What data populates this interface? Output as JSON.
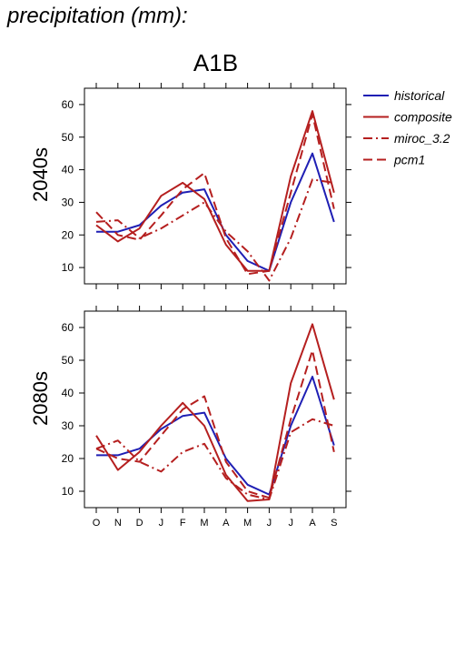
{
  "title": "precipitation (mm):",
  "subtitle": "A1B",
  "colors": {
    "historical": "#1f1fb4",
    "model": "#b51f1f",
    "axis": "#000000",
    "background": "#ffffff"
  },
  "legend": [
    {
      "label": "historical",
      "color": "#1f1fb4",
      "dash": "solid"
    },
    {
      "label": "composite",
      "color": "#b51f1f",
      "dash": "solid"
    },
    {
      "label": "miroc_3.2",
      "color": "#b51f1f",
      "dash": "dashdot"
    },
    {
      "label": "pcm1",
      "color": "#b51f1f",
      "dash": "dashed"
    }
  ],
  "chart_data": [
    {
      "type": "line",
      "panel_label": "2040s",
      "categories": [
        "O",
        "N",
        "D",
        "J",
        "F",
        "M",
        "A",
        "M",
        "J",
        "J",
        "A",
        "S"
      ],
      "ylim": [
        5,
        65
      ],
      "yticks": [
        10,
        20,
        30,
        40,
        50,
        60
      ],
      "series": [
        {
          "name": "historical",
          "values": [
            21,
            21,
            23,
            29,
            33,
            34,
            20,
            12,
            9,
            30,
            45,
            24
          ]
        },
        {
          "name": "composite",
          "values": [
            23,
            18,
            22,
            32,
            36,
            31,
            17,
            9,
            9,
            38,
            58,
            33
          ]
        },
        {
          "name": "miroc_3.2",
          "values": [
            24,
            24.5,
            19,
            22,
            26,
            30,
            21,
            15,
            6,
            19,
            37,
            36
          ]
        },
        {
          "name": "pcm1",
          "values": [
            27,
            20,
            18.5,
            26,
            34,
            39,
            19,
            8,
            9,
            33,
            57,
            28
          ]
        }
      ]
    },
    {
      "type": "line",
      "panel_label": "2080s",
      "categories": [
        "O",
        "N",
        "D",
        "J",
        "F",
        "M",
        "A",
        "M",
        "J",
        "J",
        "A",
        "S"
      ],
      "ylim": [
        5,
        65
      ],
      "yticks": [
        10,
        20,
        30,
        40,
        50,
        60
      ],
      "series": [
        {
          "name": "historical",
          "values": [
            21,
            21,
            23,
            29,
            33,
            34,
            20,
            12,
            9,
            30,
            45,
            24
          ]
        },
        {
          "name": "composite",
          "values": [
            27,
            16.5,
            22,
            30,
            37,
            30,
            15,
            7,
            7.5,
            43,
            61,
            38
          ]
        },
        {
          "name": "miroc_3.2",
          "values": [
            23,
            25.5,
            19,
            16,
            22,
            24.5,
            14,
            9,
            7.5,
            28,
            32,
            30
          ]
        },
        {
          "name": "pcm1",
          "values": [
            23,
            20,
            19,
            27,
            35,
            39,
            19,
            10,
            8,
            32,
            53,
            22
          ]
        }
      ]
    }
  ]
}
